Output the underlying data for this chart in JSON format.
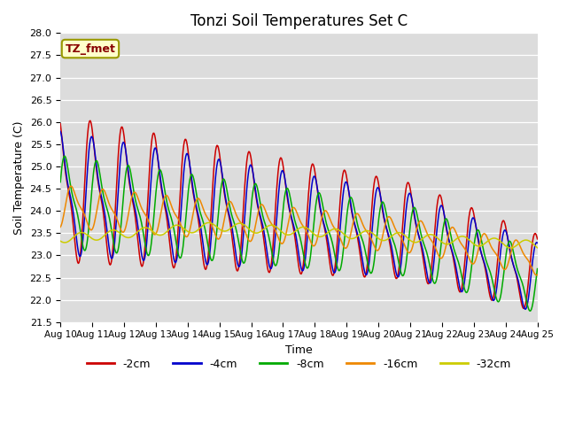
{
  "title": "Tonzi Soil Temperatures Set C",
  "xlabel": "Time",
  "ylabel": "Soil Temperature (C)",
  "ylim": [
    21.5,
    28.0
  ],
  "xlim": [
    0,
    15
  ],
  "yticks": [
    21.5,
    22.0,
    22.5,
    23.0,
    23.5,
    24.0,
    24.5,
    25.0,
    25.5,
    26.0,
    26.5,
    27.0,
    27.5,
    28.0
  ],
  "xtick_labels": [
    "Aug 10",
    "Aug 11",
    "Aug 12",
    "Aug 13",
    "Aug 14",
    "Aug 15",
    "Aug 16",
    "Aug 17",
    "Aug 18",
    "Aug 19",
    "Aug 20",
    "Aug 21",
    "Aug 22",
    "Aug 23",
    "Aug 24",
    "Aug 25"
  ],
  "legend_entries": [
    "-2cm",
    "-4cm",
    "-8cm",
    "-16cm",
    "-32cm"
  ],
  "legend_colors": [
    "#cc0000",
    "#0000cc",
    "#00aa00",
    "#ee8800",
    "#cccc00"
  ],
  "line_colors": [
    "#cc0000",
    "#0000cc",
    "#00aa00",
    "#ee8800",
    "#cccc00"
  ],
  "background_color": "#dcdcdc",
  "annotation_text": "TZ_fmet",
  "annotation_box_facecolor": "#ffffcc",
  "annotation_box_edgecolor": "#999900",
  "annotation_text_color": "#880000"
}
